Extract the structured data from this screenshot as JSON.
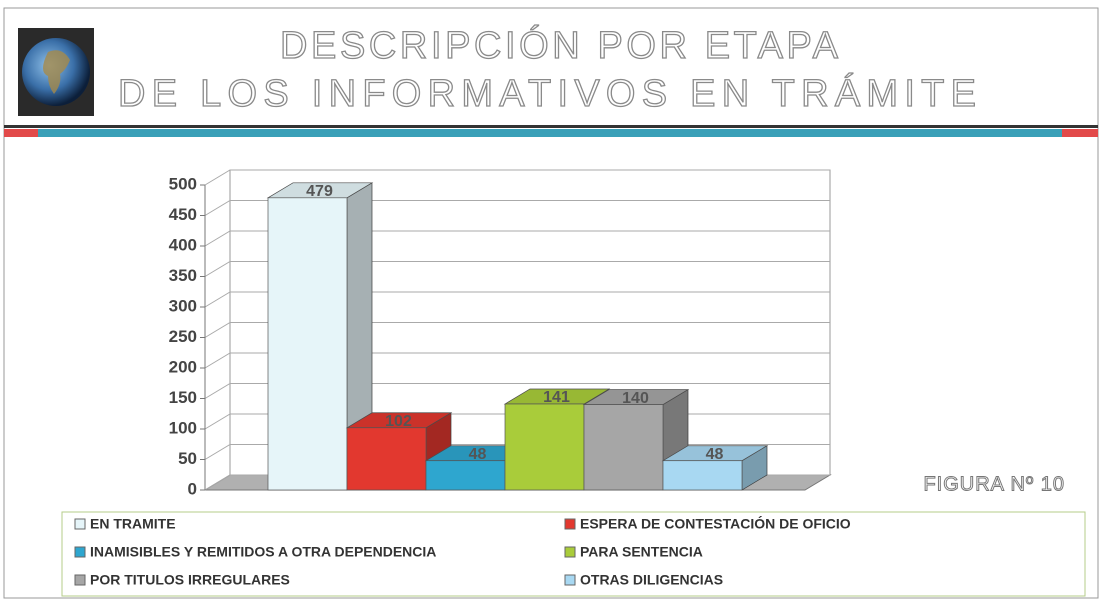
{
  "chart_data": {
    "type": "bar3d",
    "title": [
      "DESCRIPCIÓN POR ETAPA",
      "DE LOS INFORMATIVOS EN TRÁMITE"
    ],
    "annotation": "FIGURA Nº 10",
    "series": [
      {
        "name": "EN TRAMITE",
        "color": "#e6f5f9",
        "values": [
          479
        ]
      },
      {
        "name": "ESPERA DE CONTESTACIÓN DE OFICIO",
        "color": "#e2382f",
        "values": [
          102
        ]
      },
      {
        "name": "INAMISIBLES Y REMITIDOS A OTRA DEPENDENCIA",
        "color": "#2ea6cf",
        "values": [
          48
        ]
      },
      {
        "name": "PARA SENTENCIA",
        "color": "#a9cc3a",
        "values": [
          141
        ]
      },
      {
        "name": "POR TITULOS IRREGULARES",
        "color": "#a6a6a6",
        "values": [
          140
        ]
      },
      {
        "name": "OTRAS DILIGENCIAS",
        "color": "#a8d8f2",
        "values": [
          48
        ]
      }
    ],
    "ylim": [
      0,
      500
    ],
    "yticks": [
      0,
      50,
      100,
      150,
      200,
      250,
      300,
      350,
      400,
      450,
      500
    ],
    "grid": true
  }
}
